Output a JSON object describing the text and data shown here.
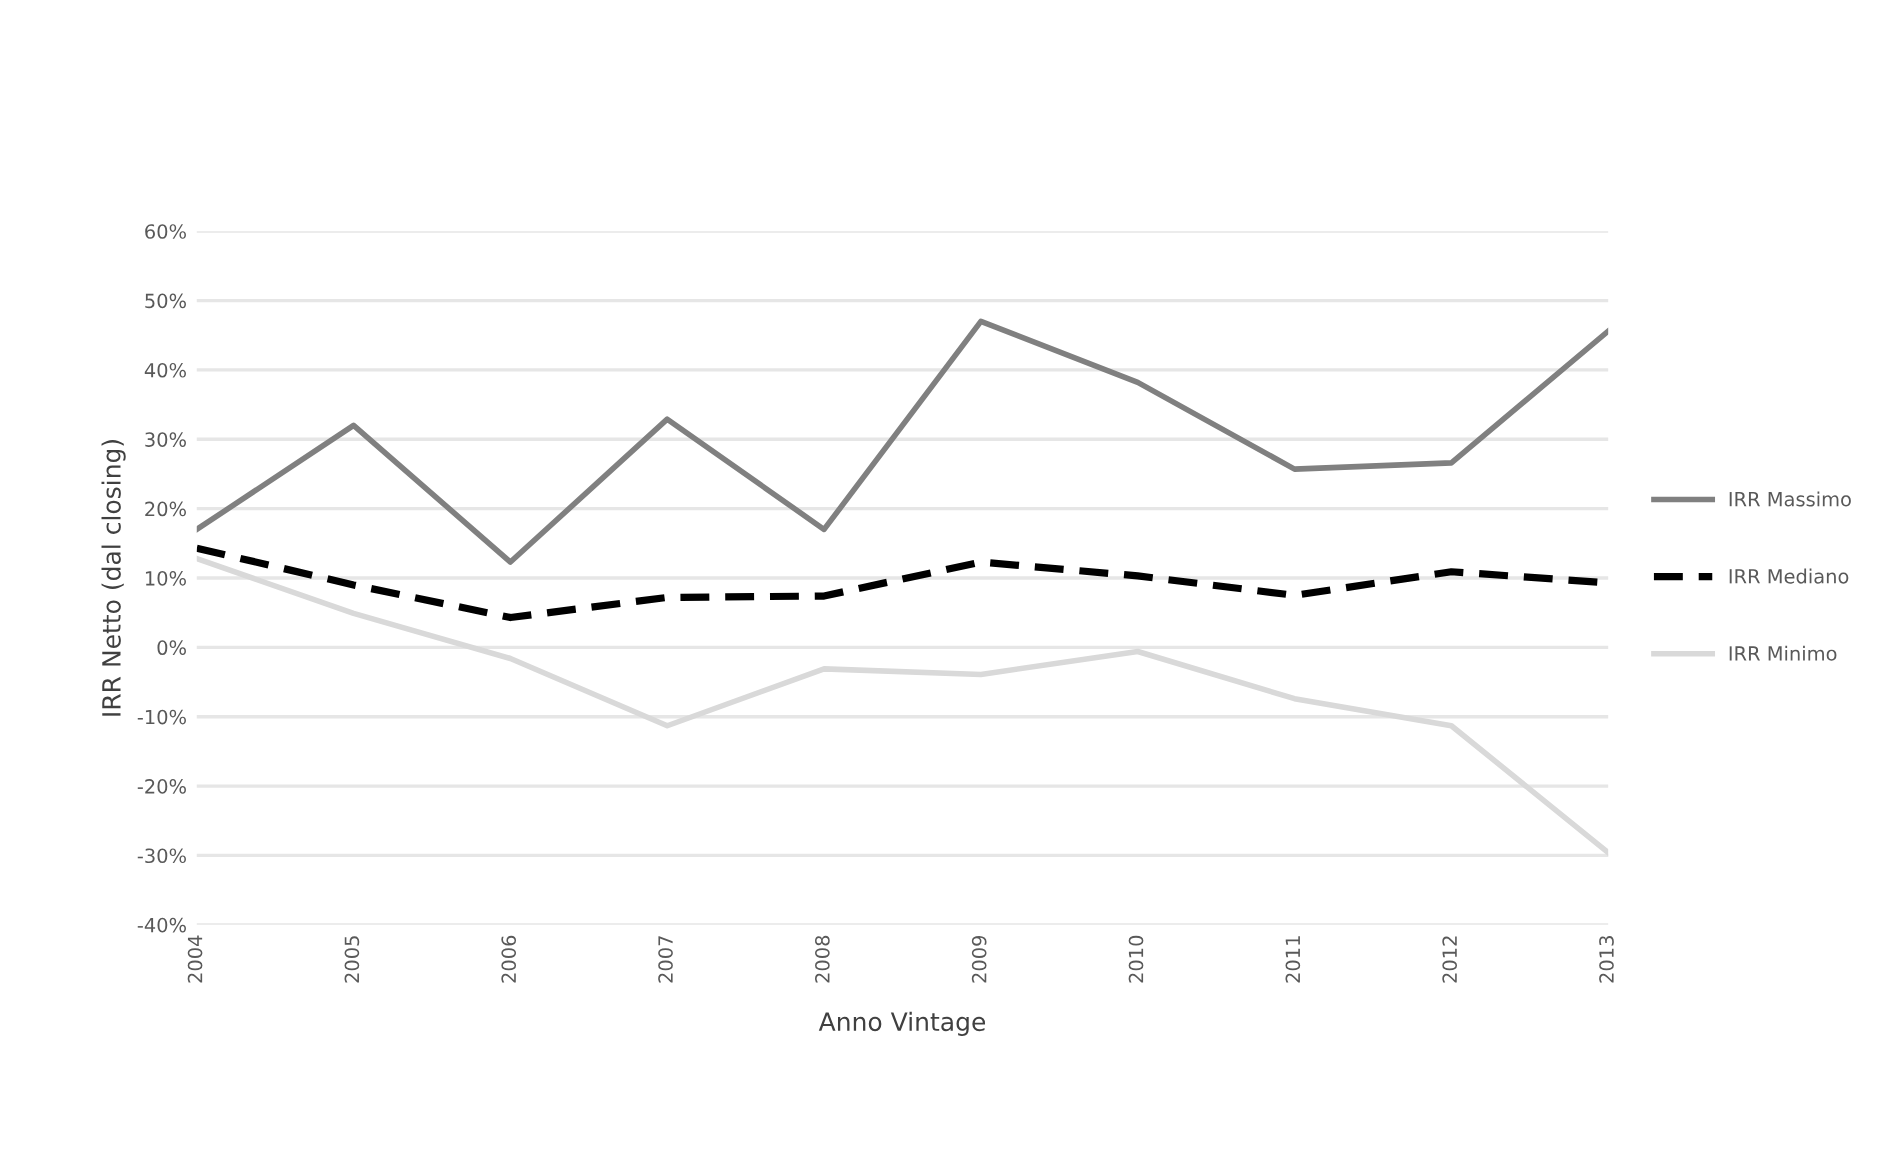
{
  "chart_data": {
    "type": "line",
    "xlabel": "Anno Vintage",
    "ylabel": "IRR Netto (dal closing)",
    "categories": [
      "2004",
      "2005",
      "2006",
      "2007",
      "2008",
      "2009",
      "2010",
      "2011",
      "2012",
      "2013"
    ],
    "series": [
      {
        "name": "IRR Massimo",
        "color": "#808080",
        "line_style": "solid",
        "values": [
          17,
          32,
          12.3,
          32.9,
          17,
          47,
          38.2,
          25.7,
          26.6,
          45.6
        ]
      },
      {
        "name": "IRR Mediano",
        "color": "#000000",
        "line_style": "dashed",
        "values": [
          14.3,
          9,
          4.3,
          7.2,
          7.4,
          12.3,
          10.3,
          7.5,
          10.9,
          9.3
        ]
      },
      {
        "name": "IRR Minimo",
        "color": "#d9d9d9",
        "line_style": "solid",
        "values": [
          12.8,
          4.9,
          -1.6,
          -11.3,
          -3.1,
          -3.9,
          -0.6,
          -7.4,
          -11.3,
          -29.6
        ]
      }
    ],
    "ylim": [
      -40,
      60
    ],
    "yticks": [
      {
        "value": -40,
        "label": "-40%"
      },
      {
        "value": -30,
        "label": "-30%"
      },
      {
        "value": -20,
        "label": "-20%"
      },
      {
        "value": -10,
        "label": "-10%"
      },
      {
        "value": 0,
        "label": "0%"
      },
      {
        "value": 10,
        "label": "10%"
      },
      {
        "value": 20,
        "label": "20%"
      },
      {
        "value": 30,
        "label": "30%"
      },
      {
        "value": 40,
        "label": "40%"
      },
      {
        "value": 50,
        "label": "50%"
      },
      {
        "value": 60,
        "label": "60%"
      }
    ],
    "grid": "y",
    "legend": "right",
    "marker": "none"
  }
}
